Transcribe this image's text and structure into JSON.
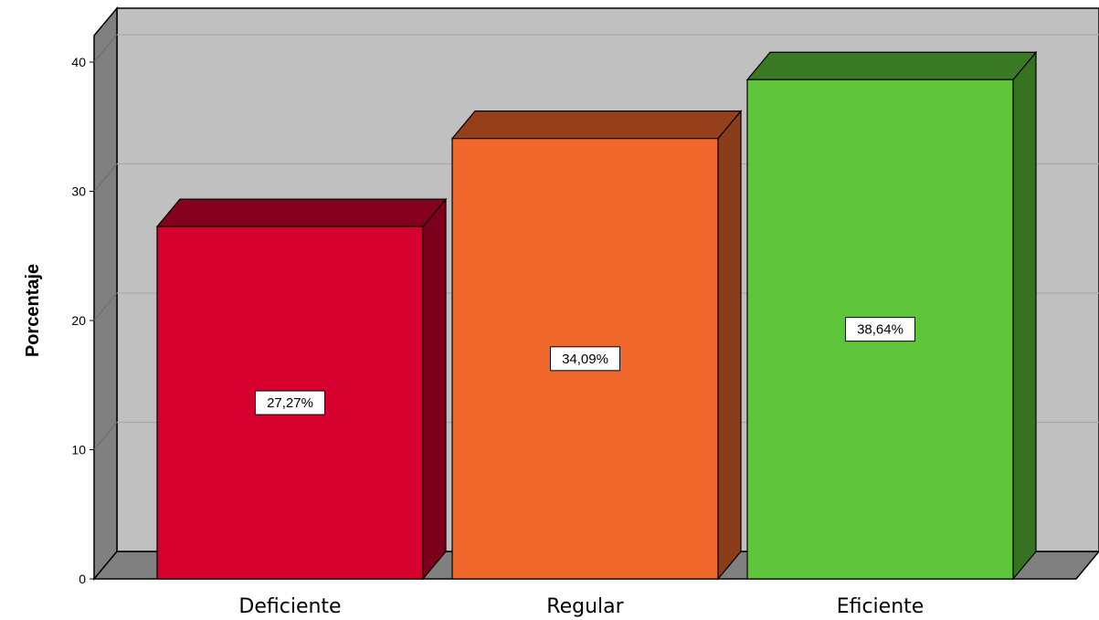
{
  "chart_data": {
    "type": "bar",
    "style": "3d",
    "categories": [
      "Deficiente",
      "Regular",
      "Eficiente"
    ],
    "values": [
      27.27,
      34.09,
      38.64
    ],
    "data_labels": [
      "27,27%",
      "34,09%",
      "38,64%"
    ],
    "title": "",
    "xlabel": "",
    "ylabel": "Porcentaje",
    "ylim": [
      0,
      40
    ],
    "yticks": [
      "0",
      "10",
      "20",
      "30",
      "40"
    ],
    "grid": true,
    "legend": "none",
    "colors": {
      "bars": [
        "#D5002E",
        "#F0672B",
        "#5EC43A"
      ],
      "background_wall": "#C0C0C0",
      "side_wall": "#808080"
    }
  }
}
